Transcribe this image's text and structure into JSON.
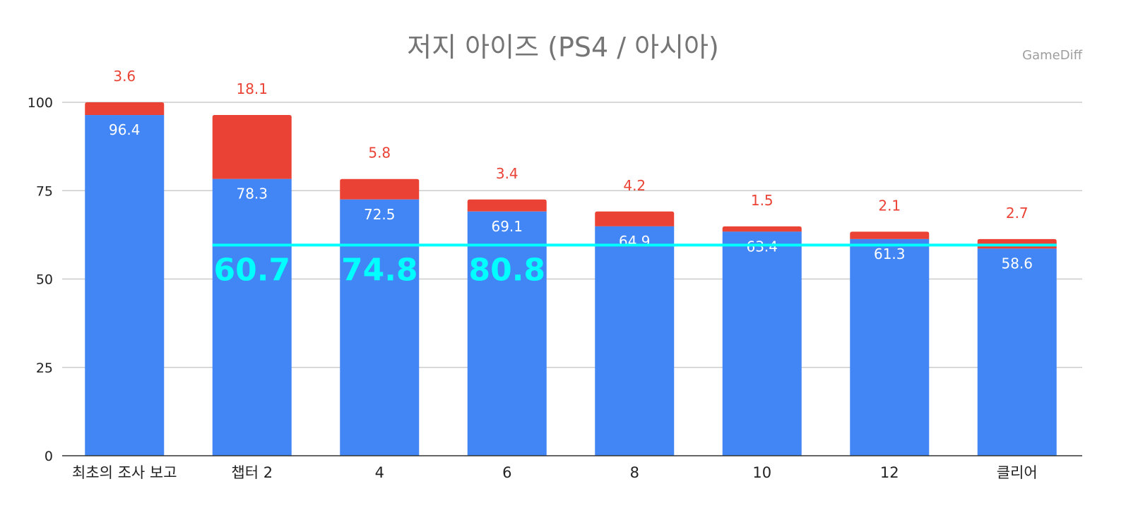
{
  "chart_data": {
    "type": "bar",
    "stacked": true,
    "title": "저지 아이즈 (PS4 / 아시아)",
    "watermark": "GameDiff",
    "categories": [
      "최초의 조사 보고",
      "챕터 2",
      "4",
      "6",
      "8",
      "10",
      "12",
      "클리어"
    ],
    "series": [
      {
        "values": [
          96.4,
          78.3,
          72.5,
          69.1,
          64.9,
          63.4,
          61.3,
          58.6
        ],
        "color": "#4285f4"
      },
      {
        "values": [
          3.6,
          18.1,
          5.8,
          3.4,
          4.2,
          1.5,
          2.1,
          2.7
        ],
        "color": "#ea4335"
      }
    ],
    "ylim": [
      0,
      100
    ],
    "yticks": [
      0,
      25,
      50,
      75,
      100
    ],
    "xlabel": "",
    "ylabel": "",
    "grid": true,
    "reference_line": {
      "value": 58.6,
      "color": "#00ffff"
    },
    "annotations": [
      {
        "category": "챕터 2",
        "text": "60.7",
        "color": "#00ffff"
      },
      {
        "category": "4",
        "text": "74.8",
        "color": "#00ffff"
      },
      {
        "category": "6",
        "text": "80.8",
        "color": "#00ffff"
      }
    ]
  }
}
